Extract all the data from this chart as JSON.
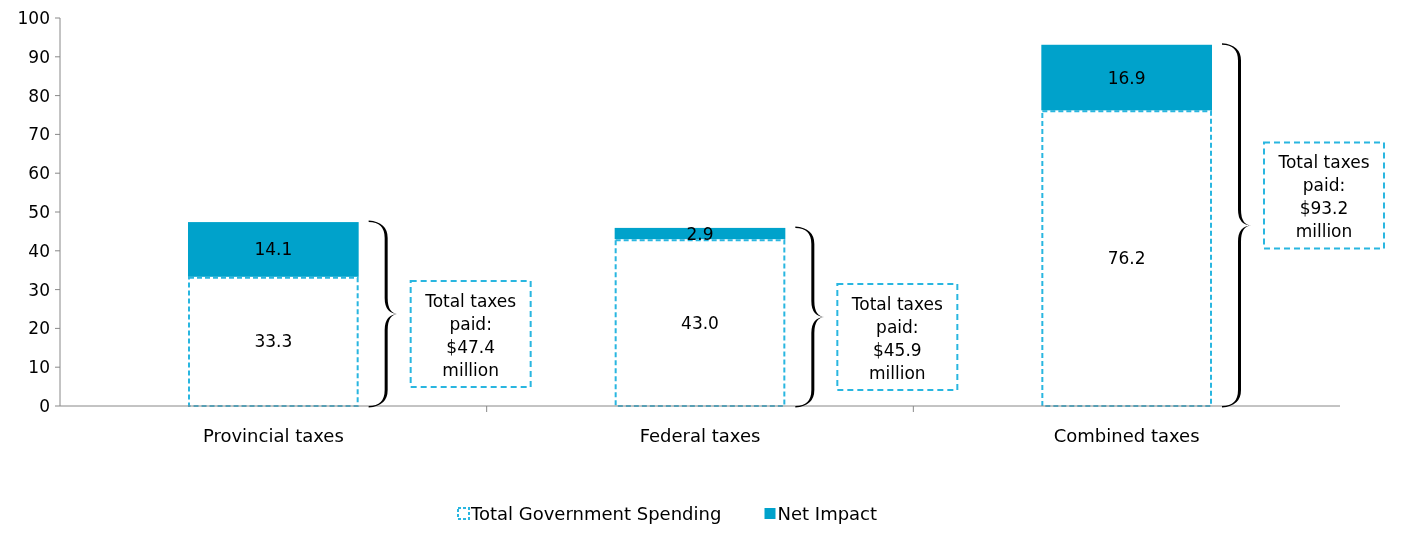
{
  "chart_data": {
    "type": "bar",
    "stacked": true,
    "categories": [
      "Provincial taxes",
      "Federal taxes",
      "Combined taxes"
    ],
    "series": [
      {
        "name": "Total Government Spending",
        "color": "#29b6e0",
        "line_style": "dashed",
        "values": [
          33.3,
          43.0,
          76.2
        ],
        "value_labels": [
          "33.3",
          "43.0",
          "76.2"
        ]
      },
      {
        "name": "Net Impact",
        "color": "#00a2cb",
        "values": [
          14.1,
          2.9,
          16.9
        ],
        "value_labels": [
          "14.1",
          "2.9",
          "16.9"
        ]
      }
    ],
    "ylim": [
      0,
      100
    ],
    "yticks": [
      0,
      10,
      20,
      30,
      40,
      50,
      60,
      70,
      80,
      90,
      100
    ],
    "grid": false,
    "legend": "bottom",
    "annotations": [
      "Total taxes paid: $47.4 million",
      "Total taxes paid: $45.9 million",
      "Total taxes paid: $93.2 million"
    ]
  }
}
